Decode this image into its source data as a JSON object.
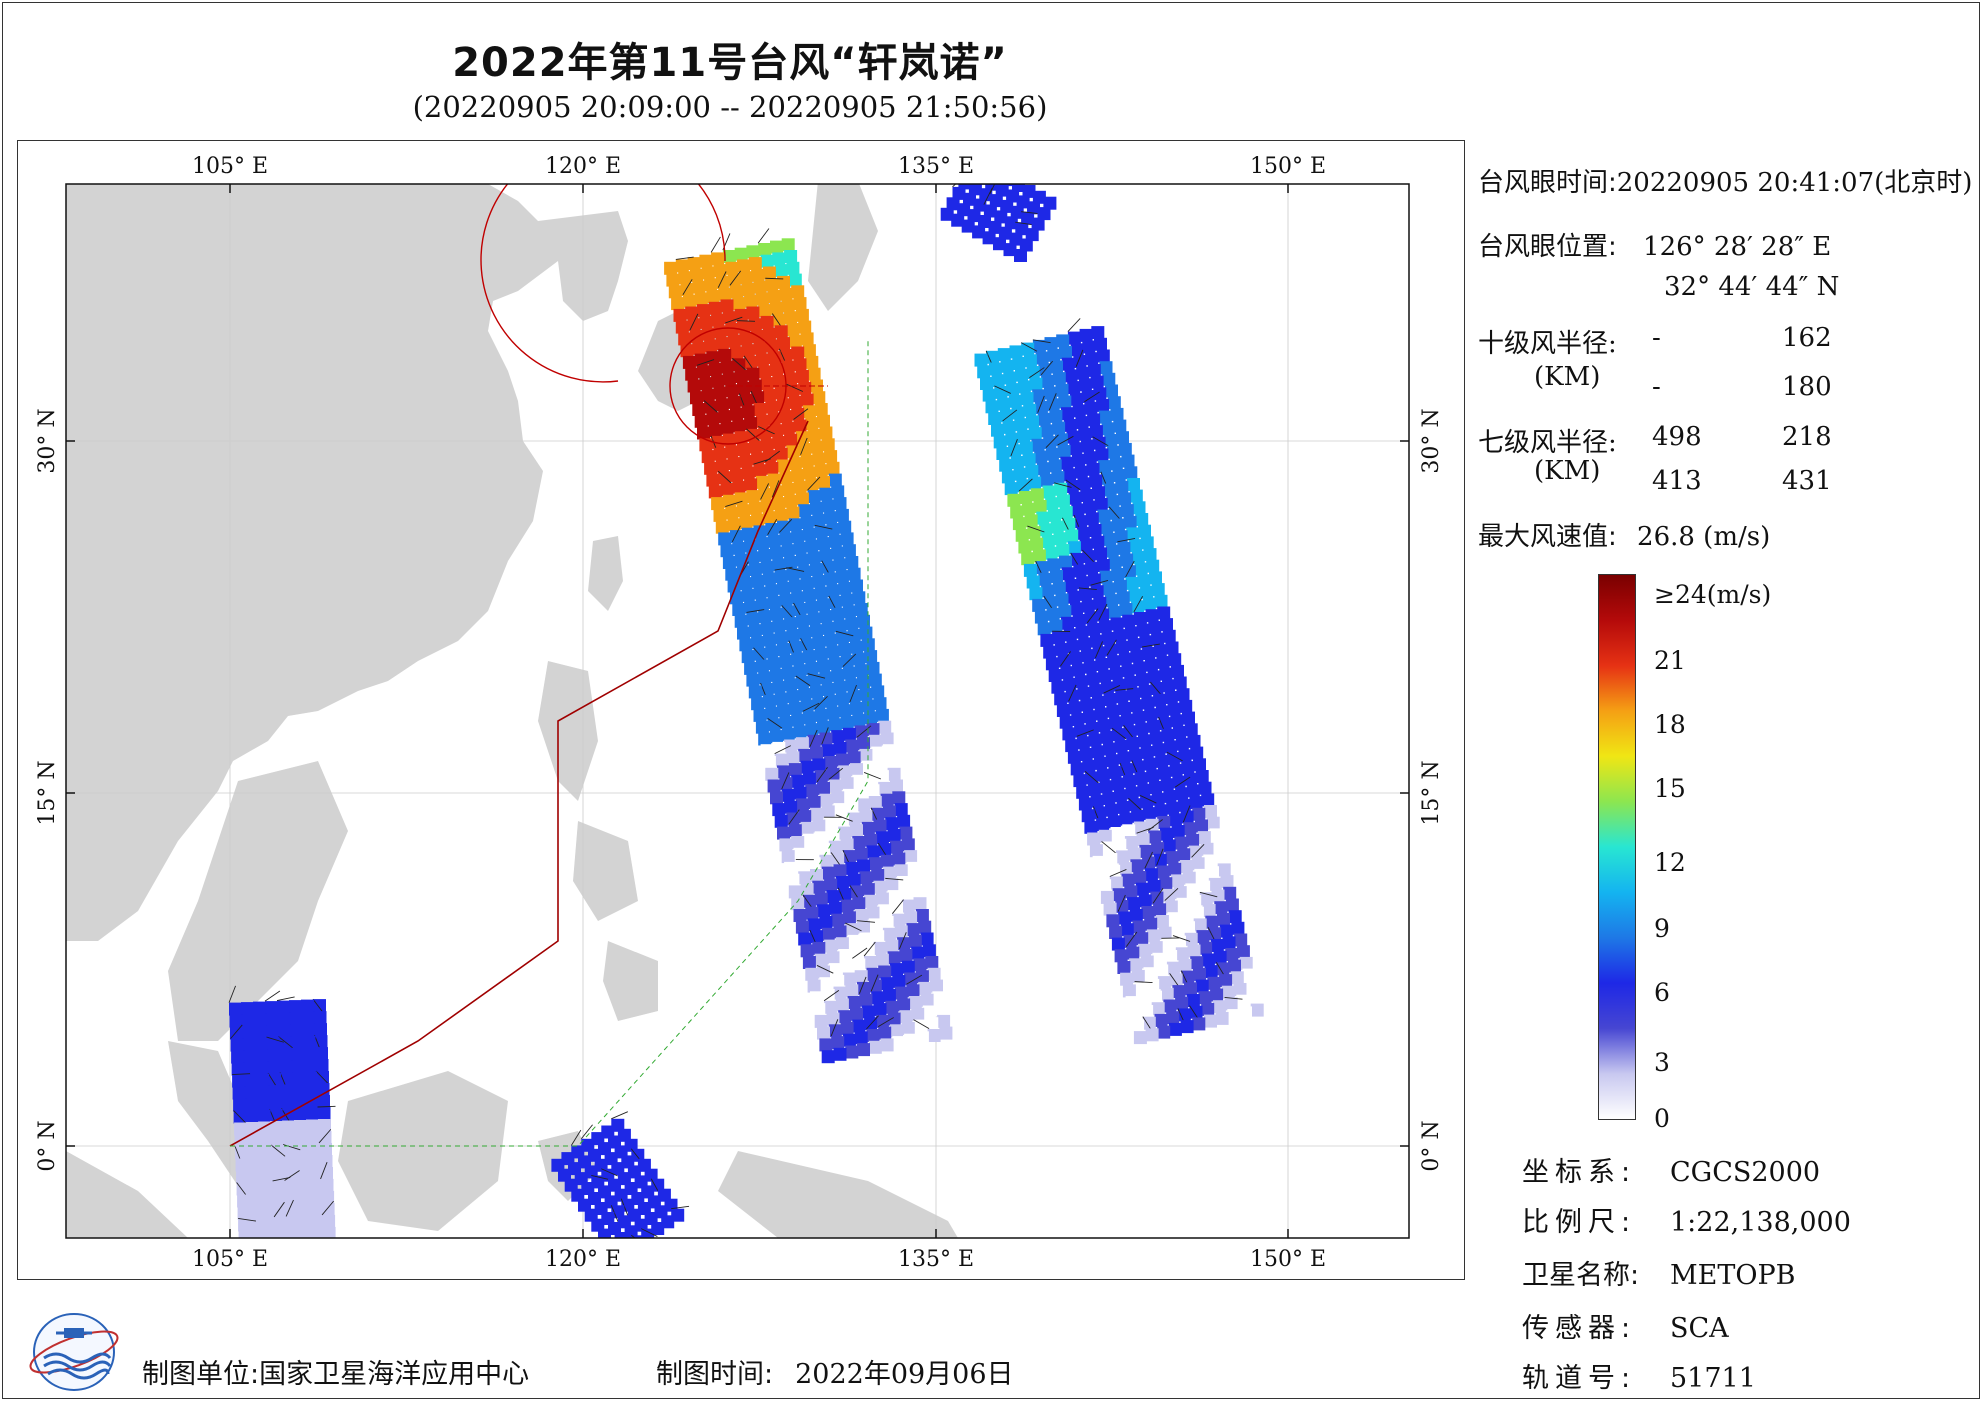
{
  "title": "2022年第11号台风“轩岚诺”",
  "subtitle": "(20220905 20:09:00 -- 20220905 21:50:56)",
  "map": {
    "lon_labels": [
      "105° E",
      "120° E",
      "135° E",
      "150° E"
    ],
    "lat_labels": [
      "30° N",
      "15° N",
      "0° N"
    ],
    "colors": {
      "land": "#d3d3d3",
      "sea": "#ffffff",
      "boundary": "#a00000",
      "line": "#33aa33"
    }
  },
  "typhoon_info": {
    "eye_time_label": "台风眼时间:",
    "eye_time_value": "20220905 20:41:07(北京时)",
    "eye_pos_label": "台风眼位置:",
    "eye_lon": "126° 28′ 28″ E",
    "eye_lat": "32° 44′ 44″ N",
    "r10_label": "十级风半径:",
    "r10_unit": "(KM)",
    "r10_row1": [
      "-",
      "162"
    ],
    "r10_row2": [
      "-",
      "180"
    ],
    "r7_label": "七级风半径:",
    "r7_unit": "(KM)",
    "r7_row1": [
      "498",
      "218"
    ],
    "r7_row2": [
      "413",
      "431"
    ],
    "max_wind_label": "最大风速值:",
    "max_wind_value": "26.8  (m/s)"
  },
  "colorbar": {
    "labels": [
      "≥24(m/s)",
      "21",
      "18",
      "15",
      "12",
      "9",
      "6",
      "3",
      "0"
    ],
    "stops": [
      "#ffffff",
      "#c8c8f0",
      "#4646d2",
      "#1e28e6",
      "#1e78e6",
      "#14b4f0",
      "#28e6d2",
      "#8ce650",
      "#f0e614",
      "#f5a014",
      "#e63214",
      "#b40a0a",
      "#7a0000"
    ]
  },
  "meta": {
    "crs_label": "坐标系:",
    "crs_value": "CGCS2000",
    "scale_label": "比例尺:",
    "scale_value": "1:22,138,000",
    "satellite_label": "卫星名称:",
    "satellite_value": "METOPB",
    "sensor_label": "传感器:",
    "sensor_value": "SCA",
    "orbit_label": "轨道号:",
    "orbit_value": "51711"
  },
  "footer": {
    "org_label": "制图单位:",
    "org_value": "国家卫星海洋应用中心",
    "date_label": "制图时间:",
    "date_value": "2022年09月06日"
  }
}
